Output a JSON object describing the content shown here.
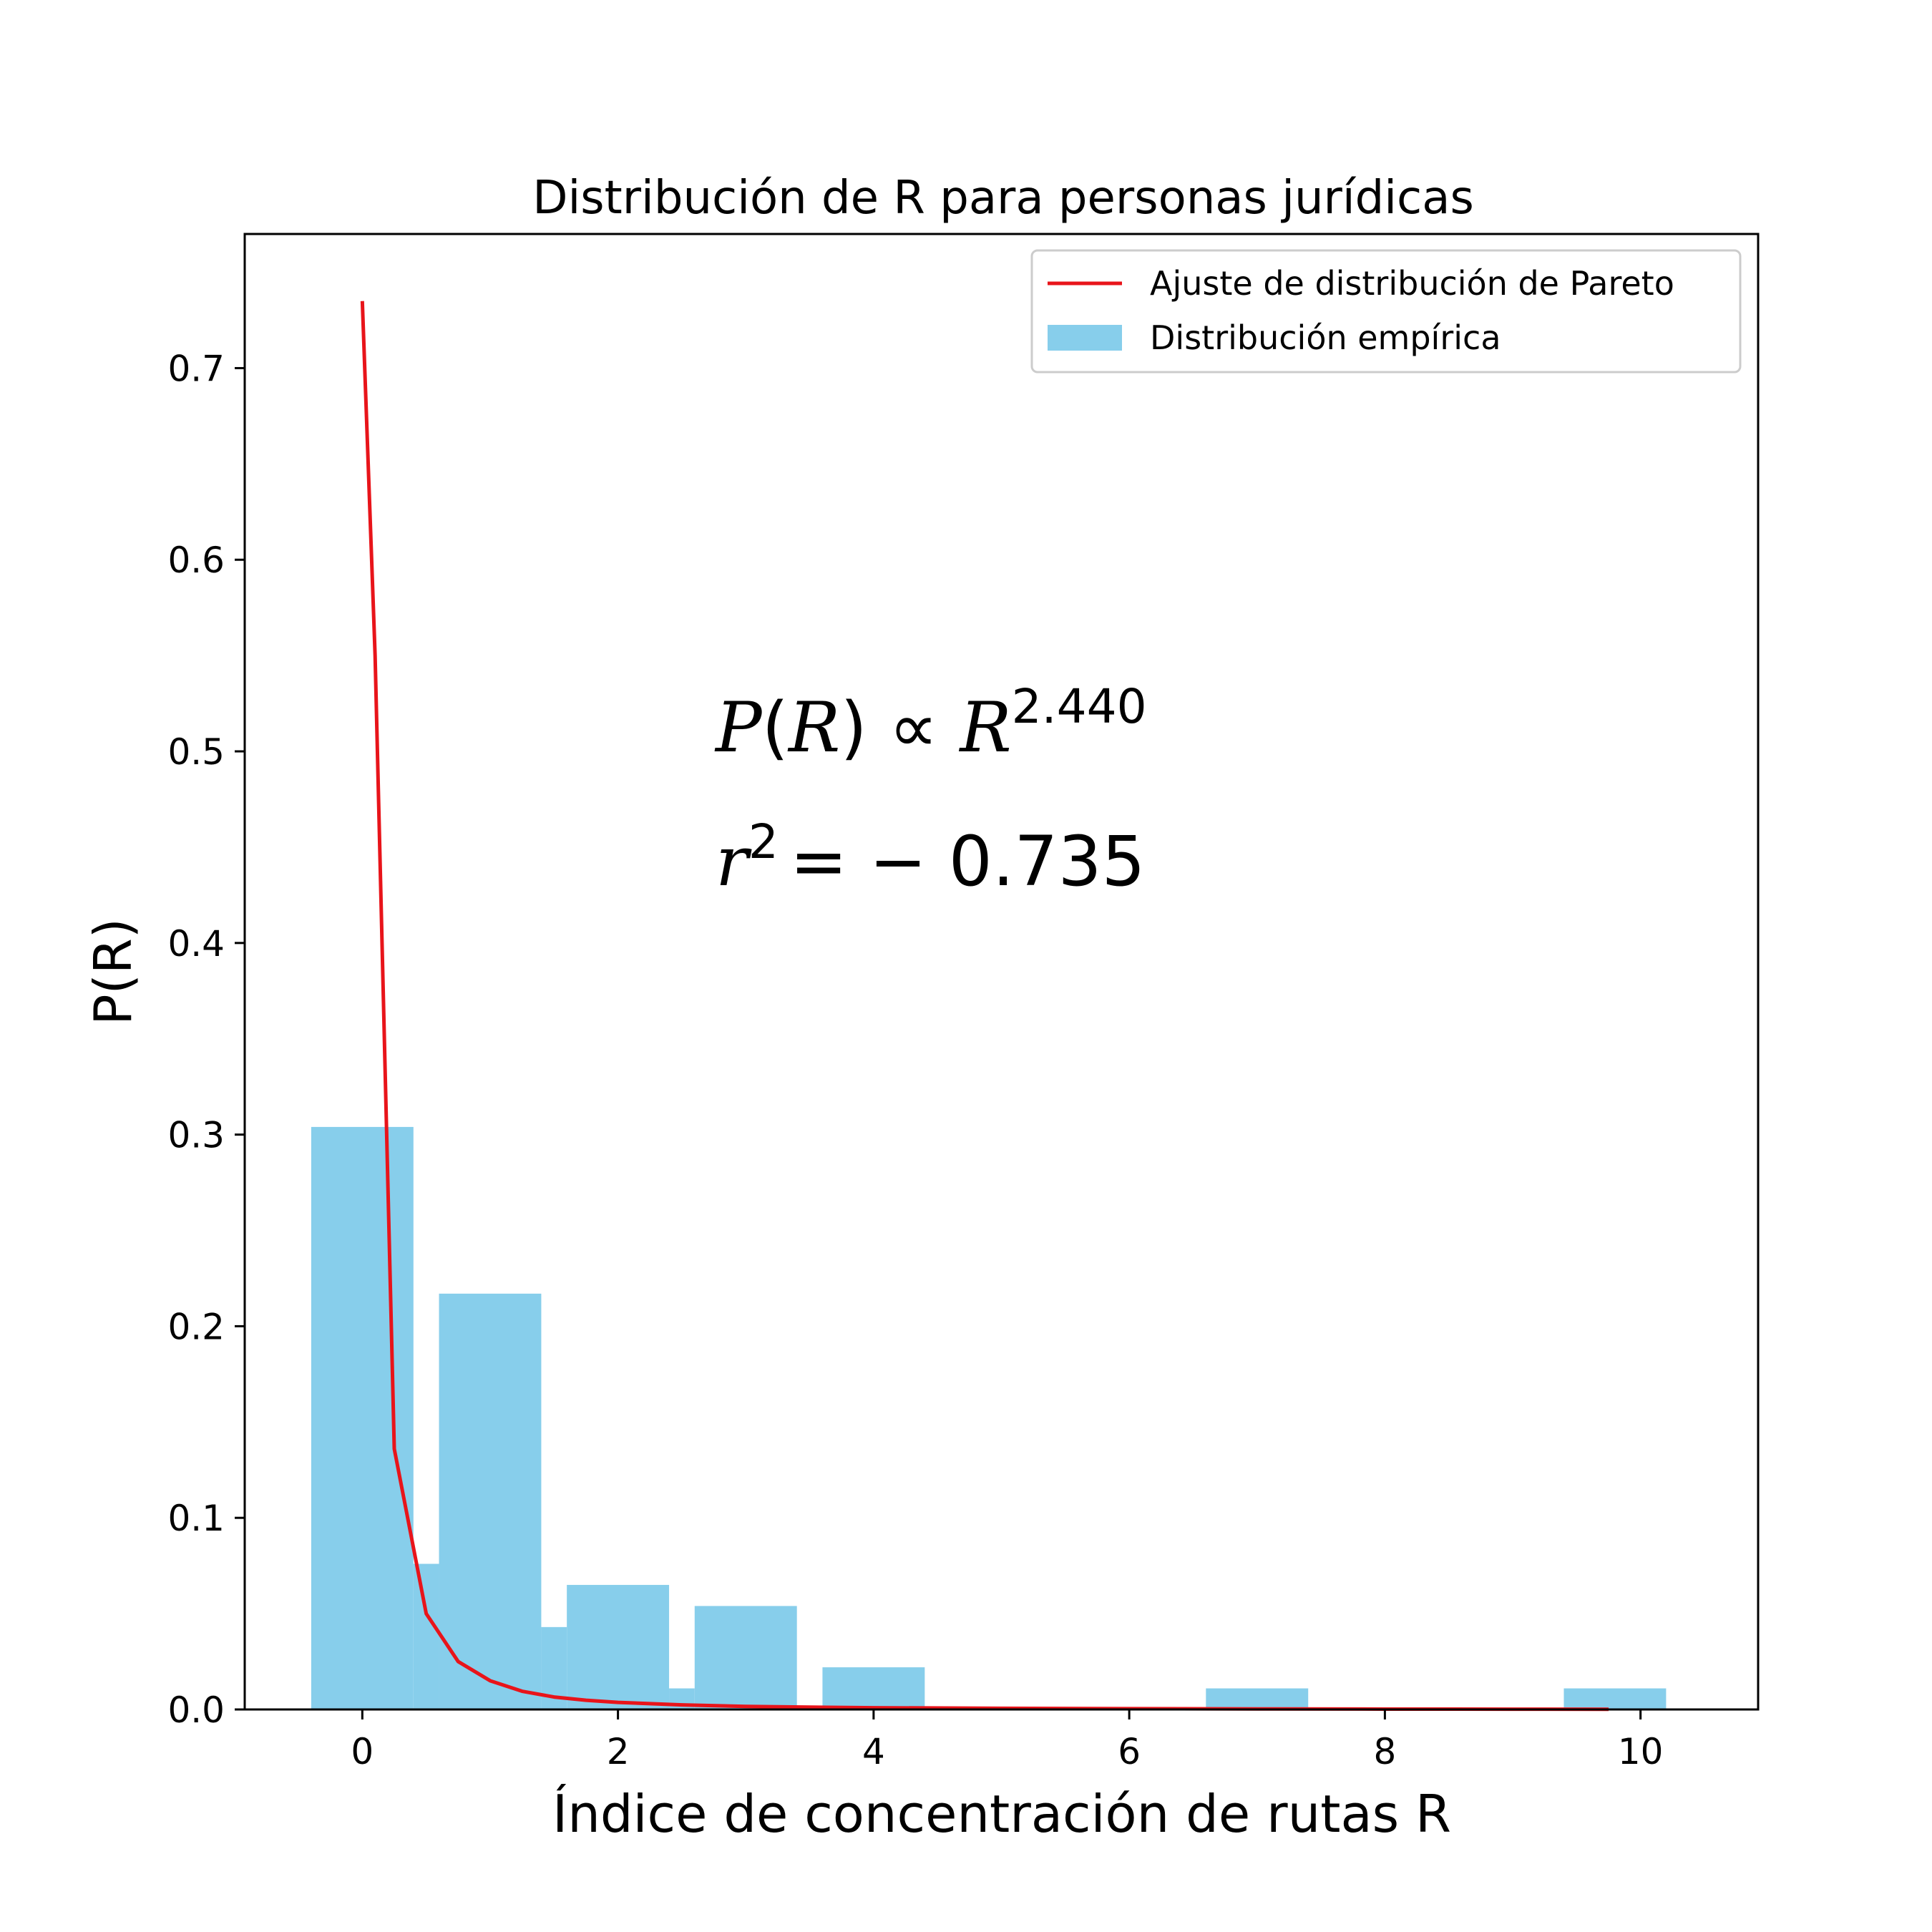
{
  "chart_data": {
    "type": "bar",
    "title": "Distribución de R para personas jurídicas",
    "xlabel": "Índice de concentración de rutas R",
    "ylabel": "P(R)",
    "xlim": [
      -0.92,
      10.92
    ],
    "ylim": [
      0,
      0.77
    ],
    "xticks": [
      0,
      2,
      4,
      6,
      8,
      10
    ],
    "yticks": [
      0.0,
      0.1,
      0.2,
      0.3,
      0.4,
      0.5,
      0.6,
      0.7
    ],
    "xtick_labels": [
      "0",
      "2",
      "4",
      "6",
      "8",
      "10"
    ],
    "ytick_labels": [
      "0.0",
      "0.1",
      "0.2",
      "0.3",
      "0.4",
      "0.5",
      "0.6",
      "0.7"
    ],
    "grid": false,
    "legend_position": "top-right",
    "legend": {
      "line_label": "Ajuste de distribución de Pareto",
      "bar_label": "Distribución empírica"
    },
    "bars": [
      {
        "x0": -0.4,
        "x1": 0.4,
        "value": 0.304
      },
      {
        "x0": 0.4,
        "x1": 0.6,
        "value": 0.076
      },
      {
        "x0": 0.6,
        "x1": 1.4,
        "value": 0.217
      },
      {
        "x0": 1.4,
        "x1": 1.6,
        "value": 0.043
      },
      {
        "x0": 1.6,
        "x1": 2.4,
        "value": 0.065
      },
      {
        "x0": 2.4,
        "x1": 2.6,
        "value": 0.011
      },
      {
        "x0": 2.6,
        "x1": 3.4,
        "value": 0.054
      },
      {
        "x0": 3.6,
        "x1": 4.4,
        "value": 0.022
      },
      {
        "x0": 6.6,
        "x1": 7.4,
        "value": 0.011
      },
      {
        "x0": 9.4,
        "x1": 10.2,
        "value": 0.011
      }
    ],
    "fit_line": {
      "x": [
        0.0,
        0.1,
        0.25,
        0.5,
        0.75,
        1.0,
        1.25,
        1.5,
        1.75,
        2.0,
        2.5,
        3.0,
        3.5,
        4.0,
        5.0,
        6.0,
        7.0,
        8.0,
        9.0,
        9.75
      ],
      "y": [
        0.735,
        0.55,
        0.136,
        0.05,
        0.025,
        0.015,
        0.0095,
        0.0065,
        0.0048,
        0.0037,
        0.0024,
        0.0016,
        0.0012,
        0.0009,
        0.0006,
        0.0004,
        0.0003,
        0.0002,
        0.00015,
        0.0001
      ]
    },
    "annotation": {
      "line1_lhs": "P",
      "line1_arg": "R",
      "line1_rel": "∝",
      "line1_base": "R",
      "line1_exp": "2.440",
      "line2_lhs": "r",
      "line2_exp": "2",
      "line2_rhs": "= − 0.735"
    },
    "colors": {
      "bar": "#87CEEB",
      "line": "#E8141A",
      "axis": "#000000"
    }
  }
}
